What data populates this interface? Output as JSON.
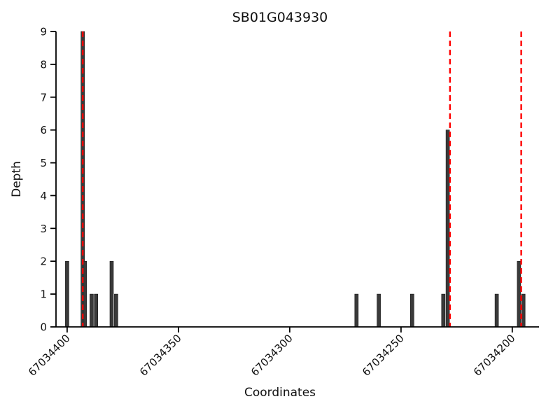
{
  "chart_data": {
    "type": "bar",
    "title": "SB01G043930",
    "xlabel": "Coordinates",
    "ylabel": "Depth",
    "grid": false,
    "legend": null,
    "x_axis": {
      "left_value": 67034405,
      "right_value": 67034188,
      "reversed": true,
      "ticks": [
        67034400,
        67034350,
        67034300,
        67034250,
        67034200
      ],
      "tick_labels": [
        "67034400",
        "67034350",
        "67034300",
        "67034250",
        "67034200"
      ]
    },
    "y_axis": {
      "min": 0,
      "max": 9,
      "ticks": [
        0,
        1,
        2,
        3,
        4,
        5,
        6,
        7,
        8,
        9
      ],
      "tick_labels": [
        "0",
        "1",
        "2",
        "3",
        "4",
        "5",
        "6",
        "7",
        "8",
        "9"
      ]
    },
    "bars": [
      {
        "coordinate": 67034400,
        "depth": 2
      },
      {
        "coordinate": 67034393,
        "depth": 9
      },
      {
        "coordinate": 67034392,
        "depth": 2
      },
      {
        "coordinate": 67034389,
        "depth": 1
      },
      {
        "coordinate": 67034387,
        "depth": 1
      },
      {
        "coordinate": 67034380,
        "depth": 2
      },
      {
        "coordinate": 67034378,
        "depth": 1
      },
      {
        "coordinate": 67034270,
        "depth": 1
      },
      {
        "coordinate": 67034260,
        "depth": 1
      },
      {
        "coordinate": 67034245,
        "depth": 1
      },
      {
        "coordinate": 67034231,
        "depth": 1
      },
      {
        "coordinate": 67034229,
        "depth": 6
      },
      {
        "coordinate": 67034207,
        "depth": 1
      },
      {
        "coordinate": 67034197,
        "depth": 2
      },
      {
        "coordinate": 67034195,
        "depth": 1
      }
    ],
    "red_dashed_lines": [
      67034393,
      67034228,
      67034196
    ],
    "colors": {
      "bar": "#3a3a3a",
      "bar_edge": "#161616",
      "dashed_line": "#ff0000",
      "axis": "#000000",
      "text": "#111111"
    }
  }
}
